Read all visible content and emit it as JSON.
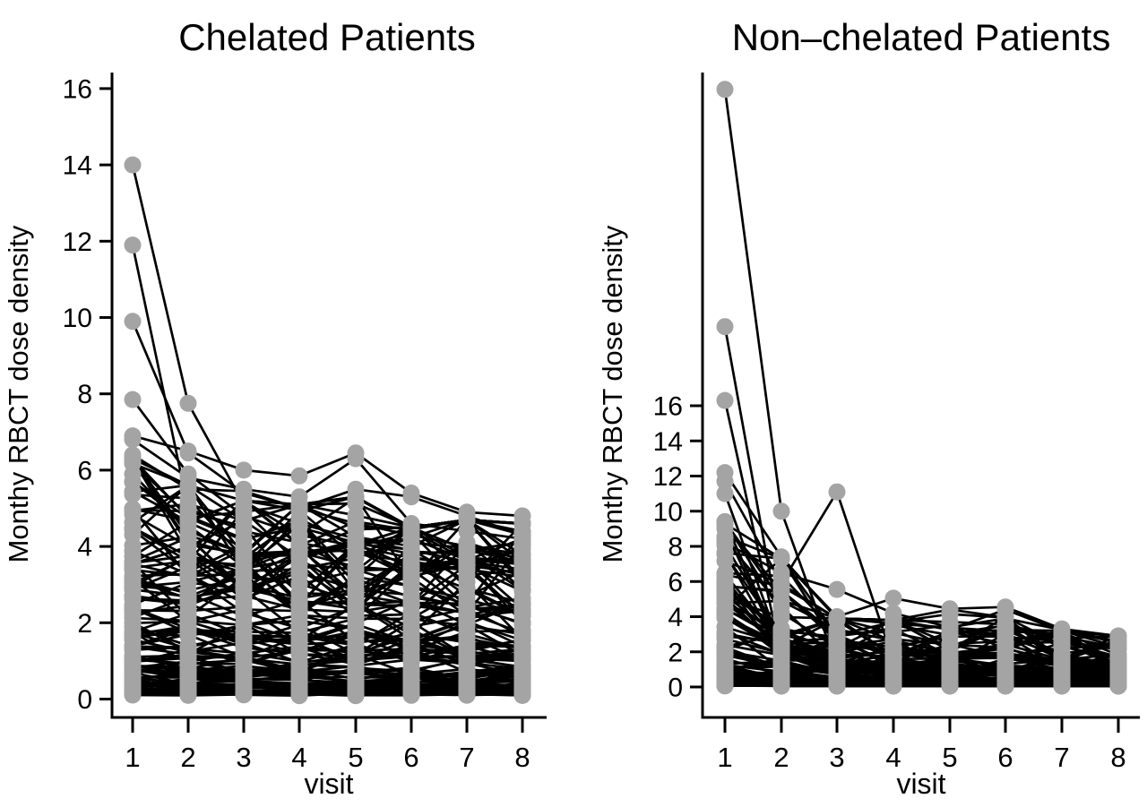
{
  "style": {
    "dot_color": "#a4a4a4",
    "line_color": "#000000",
    "axis_color": "#000000",
    "text_color": "#000000",
    "dot_radius": 9.5,
    "line_width": 2.7,
    "axis_width": 3
  },
  "chart_data": [
    {
      "type": "line",
      "panel": "left",
      "title": "Chelated Patients",
      "xlabel": "visit",
      "ylabel": "Monthy RBCT dose density",
      "xticks": [
        1,
        2,
        3,
        4,
        5,
        6,
        7,
        8
      ],
      "yticks": [
        0,
        2,
        4,
        6,
        8,
        10,
        12,
        14,
        16
      ],
      "ylim": [
        0,
        16.4
      ],
      "grid": false,
      "legend": false,
      "outlier_series": [
        [
          14.0,
          7.75,
          5.1,
          4.6,
          4.2,
          3.9,
          3.6,
          3.4
        ],
        [
          11.9,
          5.0,
          4.4,
          4.1,
          3.8,
          3.6,
          3.4,
          3.2
        ],
        [
          9.9,
          6.45,
          5.4,
          5.0,
          4.6,
          4.3,
          4.0,
          3.8
        ],
        [
          7.85,
          5.9,
          4.8,
          4.3,
          4.0,
          3.7,
          3.5,
          3.3
        ],
        [
          6.9,
          6.5,
          6.0,
          5.85,
          6.45,
          5.4,
          4.9,
          4.8
        ],
        [
          6.8,
          5.8,
          5.5,
          5.3,
          6.3,
          4.6,
          4.4,
          4.2
        ],
        [
          6.4,
          5.5,
          5.45,
          5.0,
          5.5,
          5.3,
          4.8,
          4.3
        ],
        [
          6.2,
          4.8,
          4.2,
          4.5,
          4.1,
          3.8,
          3.9,
          3.6
        ]
      ],
      "background_series": {
        "count": 125,
        "seed": 11,
        "base_min": 0.15,
        "base_max": 6.2,
        "skew": 1.7,
        "decay": [
          1,
          0.92,
          0.88,
          0.86,
          0.86,
          0.83,
          0.83,
          0.81
        ],
        "noise_lo": 0.68,
        "noise_hi": 1.32,
        "tops": [
          6.3,
          5.6,
          5.2,
          5.1,
          5.3,
          4.5,
          4.7,
          4.6
        ],
        "floor": 0.08
      }
    },
    {
      "type": "line",
      "panel": "right",
      "title": "Non–chelated Patients",
      "xlabel": "visit",
      "ylabel": "Monthy RBCT dose density",
      "xticks": [
        1,
        2,
        3,
        4,
        5,
        6,
        7,
        8
      ],
      "yticks": [
        0,
        2,
        4,
        6,
        8,
        10,
        12,
        14,
        16
      ],
      "ylim": [
        0,
        34.8
      ],
      "grid": false,
      "legend": false,
      "outlier_series": [
        [
          34.0,
          10.0,
          1.2,
          0.8,
          0.6,
          0.5,
          0.5,
          0.4
        ],
        [
          20.5,
          2.8,
          1.6,
          1.2,
          1.0,
          0.9,
          0.8,
          0.7
        ],
        [
          16.3,
          1.8,
          1.1,
          0.9,
          0.8,
          0.7,
          0.6,
          0.5
        ],
        [
          12.2,
          7.4,
          3.9,
          2.6,
          2.0,
          1.6,
          1.3,
          1.1
        ],
        [
          11.7,
          5.9,
          11.1,
          1.5,
          1.1,
          0.9,
          0.8,
          0.7
        ],
        [
          11.0,
          2.2,
          1.4,
          1.0,
          0.8,
          0.7,
          0.6,
          0.5
        ],
        [
          9.3,
          7.3,
          4.0,
          5.05,
          4.45,
          4.55,
          3.3,
          2.9
        ],
        [
          8.2,
          6.5,
          5.55,
          4.2,
          3.4,
          3.9,
          3.25,
          2.6
        ],
        [
          9.0,
          2.0,
          1.2,
          0.9,
          0.8,
          0.7,
          0.6,
          0.5
        ]
      ],
      "background_series": {
        "count": 115,
        "seed": 23,
        "base_min": 0.1,
        "base_max": 9.2,
        "skew": 2.6,
        "decay": [
          1,
          0.62,
          0.45,
          0.38,
          0.36,
          0.35,
          0.32,
          0.3
        ],
        "noise_lo": 0.5,
        "noise_hi": 1.5,
        "tops": [
          9.4,
          7.3,
          3.9,
          3.8,
          4.4,
          4.5,
          3.2,
          2.9
        ],
        "floor": 0.06
      }
    }
  ]
}
